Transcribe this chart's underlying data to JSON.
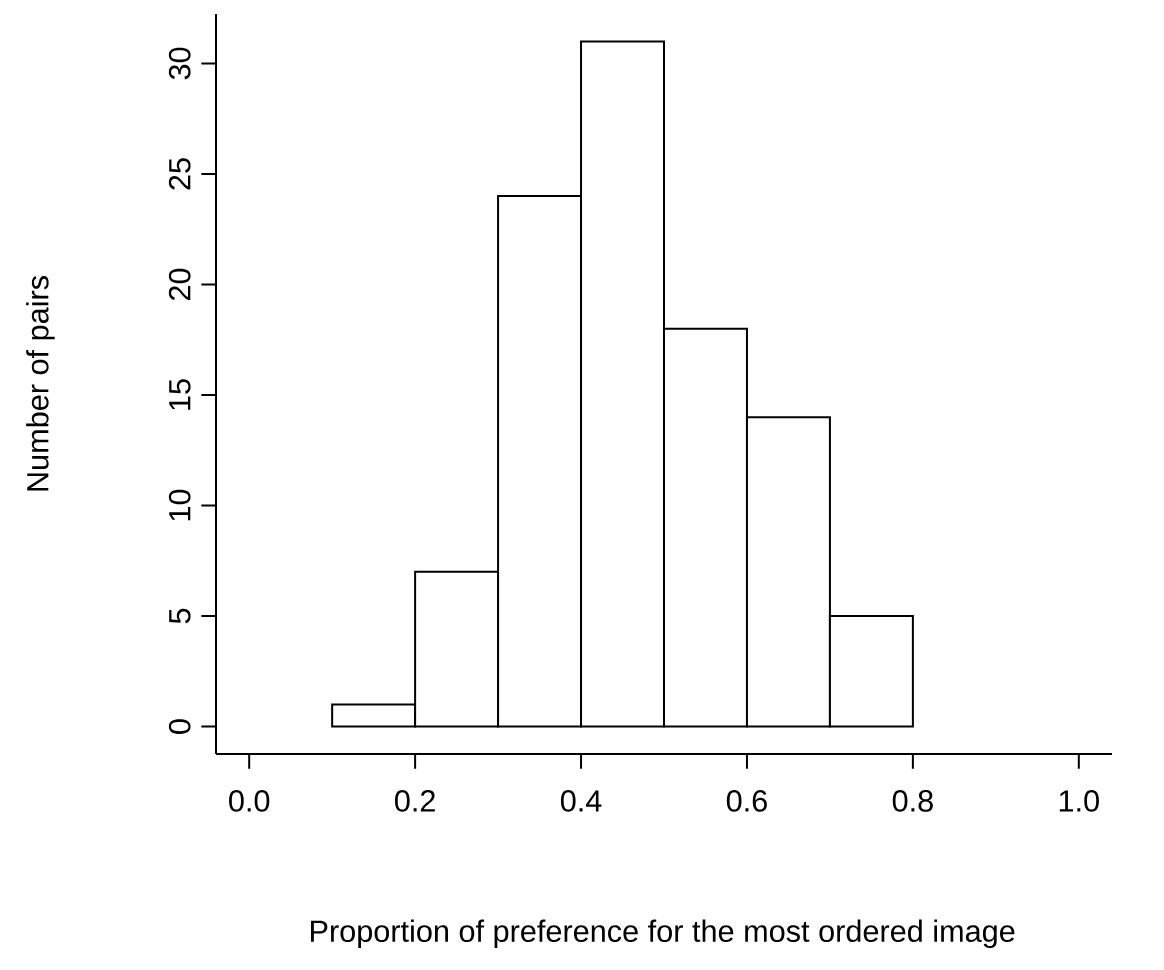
{
  "chart_data": {
    "type": "histogram",
    "xlabel": "Proportion of preference for the most ordered image",
    "ylabel": "Number of pairs",
    "bins": [
      0.1,
      0.2,
      0.3,
      0.4,
      0.5,
      0.6,
      0.7,
      0.8
    ],
    "values": [
      1,
      7,
      24,
      31,
      18,
      14,
      5
    ],
    "color": "#ffffff",
    "xlim": [
      -0.04,
      1.04
    ],
    "ylim": [
      -1.24,
      32.24
    ],
    "xticks": [
      {
        "value": 0,
        "label": "0.0"
      },
      {
        "value": 0.2,
        "label": "0.2"
      },
      {
        "value": 0.4,
        "label": "0.4"
      },
      {
        "value": 0.6,
        "label": "0.6"
      },
      {
        "value": 0.8,
        "label": "0.8"
      },
      {
        "value": 1,
        "label": "1.0"
      }
    ],
    "yticks": [
      0,
      5,
      10,
      15,
      20,
      25,
      30
    ]
  }
}
